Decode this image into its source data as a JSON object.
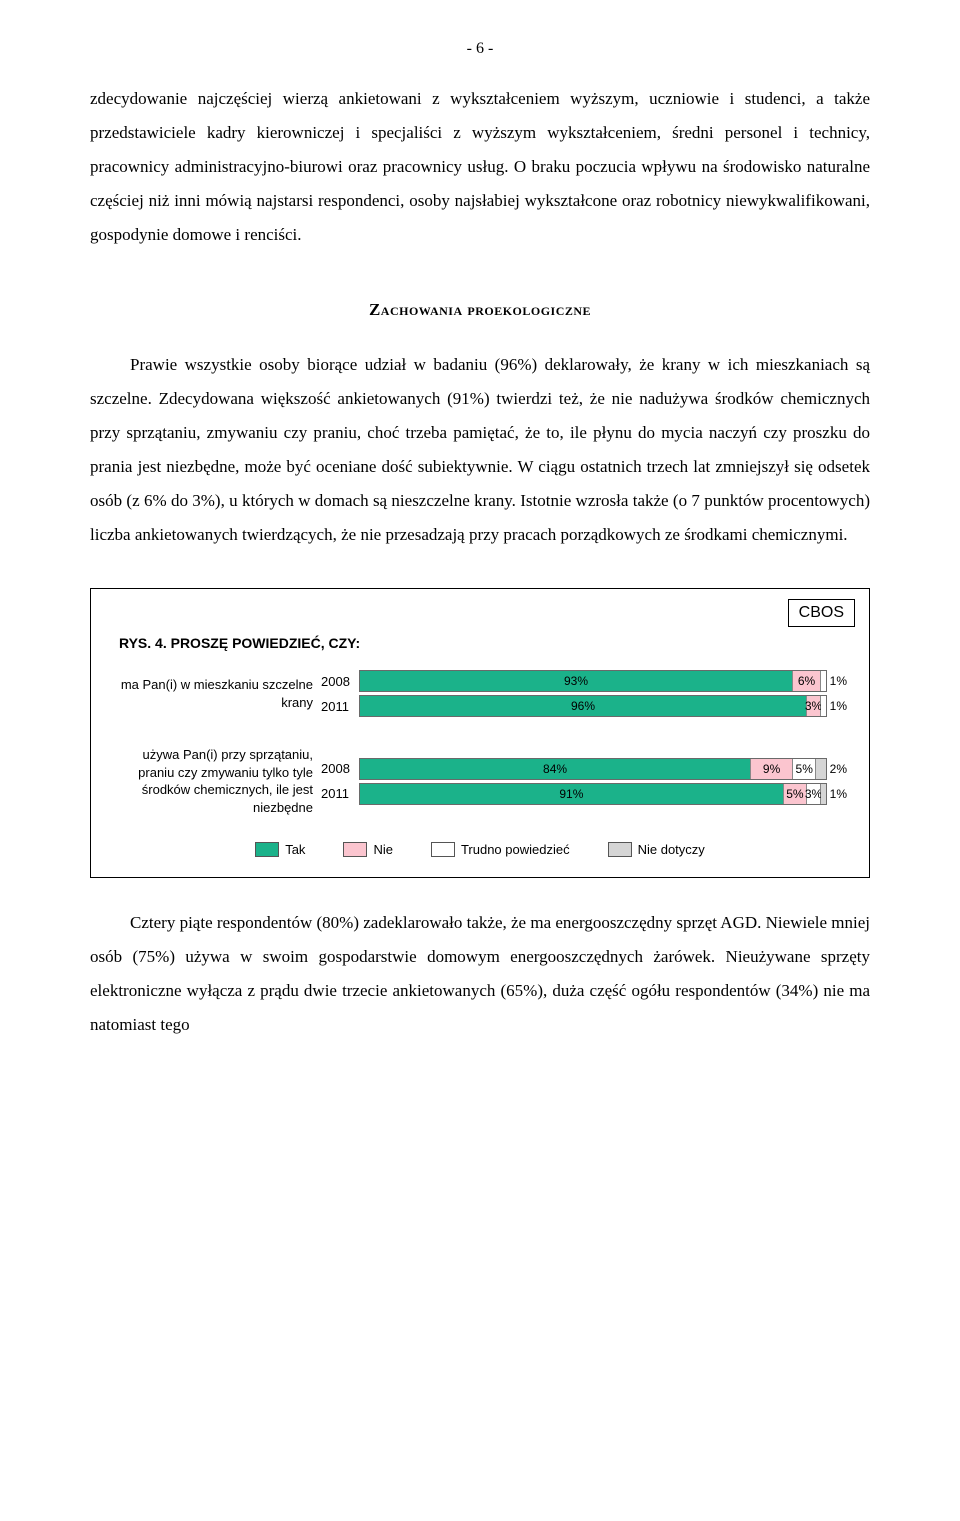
{
  "page_number": "- 6 -",
  "paragraphs": {
    "p1": "zdecydowanie najczęściej wierzą ankietowani z wykształceniem wyższym, uczniowie i studenci, a także przedstawiciele kadry kierowniczej i specjaliści z wyższym wykształceniem, średni personel i technicy, pracownicy administracyjno-biurowi oraz pracownicy usług. O braku poczucia wpływu na środowisko naturalne częściej niż inni mówią najstarsi respondenci, osoby najsłabiej wykształcone oraz robotnicy niewykwalifikowani, gospodynie domowe i renciści.",
    "heading": "Zachowania proekologiczne",
    "p2": "Prawie wszystkie osoby biorące udział w badaniu (96%) deklarowały, że krany w ich mieszkaniach są szczelne. Zdecydowana większość ankietowanych (91%) twierdzi też, że nie nadużywa środków chemicznych przy sprzątaniu, zmywaniu czy praniu, choć trzeba pamiętać, że to, ile płynu do mycia naczyń czy proszku do prania jest niezbędne, może być oceniane dość subiektywnie. W ciągu ostatnich trzech lat zmniejszył się odsetek osób (z 6% do 3%), u których w domach są nieszczelne krany. Istotnie wzrosła także (o 7 punktów procentowych) liczba ankietowanych twierdzących, że nie przesadzają przy pracach porządkowych ze środkami chemicznymi.",
    "p3": "Cztery piąte respondentów (80%) zadeklarowało także, że ma energooszczędny sprzęt AGD. Niewiele mniej osób (75%) używa w swoim gospodarstwie domowym energooszczędnych żarówek. Nieużywane sprzęty elektroniczne wyłącza z prądu dwie trzecie ankietowanych (65%), duża część ogółu respondentów (34%) nie ma natomiast tego"
  },
  "chart": {
    "box_label": "CBOS",
    "title": "RYS. 4. PROSZĘ POWIEDZIEĆ, CZY:",
    "colors": {
      "tak": "#1bb28a",
      "nie": "#fbc5cf",
      "trudno": "#ffffff",
      "niedot": "#d5d5d5",
      "border": "#000000"
    },
    "rows": [
      {
        "label": "ma Pan(i) w mieszkaniu szczelne krany",
        "bars": [
          {
            "year": "2008",
            "segments": [
              {
                "key": "tak",
                "value": 93,
                "text": "93%"
              },
              {
                "key": "nie",
                "value": 6,
                "text": "6%"
              },
              {
                "key": "trudno",
                "value": 1,
                "text": "1%",
                "outside": true
              }
            ]
          },
          {
            "year": "2011",
            "segments": [
              {
                "key": "tak",
                "value": 96,
                "text": "96%"
              },
              {
                "key": "nie",
                "value": 3,
                "text": "3%"
              },
              {
                "key": "trudno",
                "value": 1,
                "text": "1%",
                "outside": true
              }
            ]
          }
        ]
      },
      {
        "label": "używa Pan(i) przy sprzątaniu, praniu czy zmywaniu tylko tyle środków chemicznych, ile jest niezbędne",
        "bars": [
          {
            "year": "2008",
            "segments": [
              {
                "key": "tak",
                "value": 84,
                "text": "84%"
              },
              {
                "key": "nie",
                "value": 9,
                "text": "9%"
              },
              {
                "key": "trudno",
                "value": 5,
                "text": "5%"
              },
              {
                "key": "niedot",
                "value": 2,
                "text": "2%",
                "outside": true
              }
            ]
          },
          {
            "year": "2011",
            "segments": [
              {
                "key": "tak",
                "value": 91,
                "text": "91%"
              },
              {
                "key": "nie",
                "value": 5,
                "text": "5%"
              },
              {
                "key": "trudno",
                "value": 3,
                "text": "3%"
              },
              {
                "key": "niedot",
                "value": 1,
                "text": "1%",
                "outside": true
              }
            ]
          }
        ]
      }
    ],
    "legend": [
      {
        "key": "tak",
        "label": "Tak"
      },
      {
        "key": "nie",
        "label": "Nie"
      },
      {
        "key": "trudno",
        "label": "Trudno powiedzieć"
      },
      {
        "key": "niedot",
        "label": "Nie dotyczy"
      }
    ]
  }
}
